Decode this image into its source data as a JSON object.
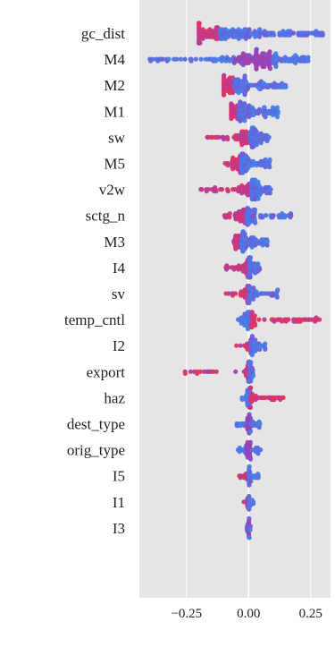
{
  "chart_data": {
    "type": "scatter",
    "subtype": "beeswarm",
    "title": "",
    "xlabel": "",
    "ylabel": "",
    "xlim": [
      -0.44,
      0.33
    ],
    "x_ticks": [
      -0.25,
      0.0,
      0.25
    ],
    "x_tick_labels": [
      "−0.25",
      "0.00",
      "0.25"
    ],
    "grid": true,
    "zero_line": true,
    "legend": "none",
    "colors": {
      "background": "#e5e5e5",
      "grid": "#ffffff",
      "low": "#3d86f0",
      "mid": "#8d45c4",
      "high": "#ee2f56"
    },
    "features": [
      {
        "name": "gc_dist",
        "min": -0.2,
        "max": 0.3,
        "center": -0.12,
        "density": 1.0,
        "spread": 0.28,
        "high_side": "neg",
        "low_side": "pos",
        "count": 240
      },
      {
        "name": "M4",
        "min": -0.4,
        "max": 0.24,
        "center": 0.02,
        "density": 1.0,
        "spread": 0.2,
        "high_side": "center",
        "low_side": "both",
        "count": 220
      },
      {
        "name": "M2",
        "min": -0.1,
        "max": 0.15,
        "center": -0.06,
        "density": 1.0,
        "spread": 0.1,
        "high_side": "neg",
        "low_side": "pos",
        "count": 160
      },
      {
        "name": "M1",
        "min": -0.07,
        "max": 0.12,
        "center": -0.04,
        "density": 1.0,
        "spread": 0.09,
        "high_side": "neg",
        "low_side": "pos",
        "count": 150
      },
      {
        "name": "sw",
        "min": -0.2,
        "max": 0.09,
        "center": 0.0,
        "density": 0.7,
        "spread": 0.07,
        "high_side": "neg",
        "low_side": "pos",
        "count": 130
      },
      {
        "name": "M5",
        "min": -0.1,
        "max": 0.09,
        "center": -0.03,
        "density": 0.8,
        "spread": 0.06,
        "high_side": "neg",
        "low_side": "pos",
        "count": 120
      },
      {
        "name": "v2w",
        "min": -0.2,
        "max": 0.09,
        "center": 0.01,
        "density": 0.7,
        "spread": 0.07,
        "high_side": "neg",
        "low_side": "pos",
        "count": 130
      },
      {
        "name": "sctg_n",
        "min": -0.1,
        "max": 0.18,
        "center": -0.01,
        "density": 0.7,
        "spread": 0.06,
        "high_side": "neg",
        "low_side": "pos",
        "count": 120
      },
      {
        "name": "M3",
        "min": -0.06,
        "max": 0.08,
        "center": -0.03,
        "density": 0.8,
        "spread": 0.05,
        "high_side": "neg",
        "low_side": "pos",
        "count": 110
      },
      {
        "name": "I4",
        "min": -0.1,
        "max": 0.05,
        "center": 0.0,
        "density": 0.6,
        "spread": 0.04,
        "high_side": "neg",
        "low_side": "pos",
        "count": 90
      },
      {
        "name": "sv",
        "min": -0.12,
        "max": 0.12,
        "center": 0.0,
        "density": 0.5,
        "spread": 0.04,
        "high_side": "neg",
        "low_side": "pos",
        "count": 80
      },
      {
        "name": "temp_cntl",
        "min": -0.07,
        "max": 0.29,
        "center": 0.0,
        "density": 0.5,
        "spread": 0.04,
        "high_side": "pos",
        "low_side": "center",
        "count": 100
      },
      {
        "name": "I2",
        "min": -0.05,
        "max": 0.07,
        "center": 0.01,
        "density": 0.5,
        "spread": 0.03,
        "high_side": "neg",
        "low_side": "pos",
        "count": 60
      },
      {
        "name": "export",
        "min": -0.31,
        "max": 0.02,
        "center": 0.0,
        "density": 0.5,
        "spread": 0.02,
        "high_side": "neg",
        "low_side": "center",
        "count": 70
      },
      {
        "name": "haz",
        "min": -0.03,
        "max": 0.15,
        "center": 0.0,
        "density": 0.5,
        "spread": 0.02,
        "high_side": "pos",
        "low_side": "center",
        "count": 70
      },
      {
        "name": "dest_type",
        "min": -0.05,
        "max": 0.05,
        "center": 0.0,
        "density": 0.5,
        "spread": 0.02,
        "high_side": "center",
        "low_side": "both",
        "count": 50
      },
      {
        "name": "orig_type",
        "min": -0.05,
        "max": 0.05,
        "center": 0.0,
        "density": 0.5,
        "spread": 0.02,
        "high_side": "center",
        "low_side": "both",
        "count": 50
      },
      {
        "name": "I5",
        "min": -0.04,
        "max": 0.04,
        "center": 0.0,
        "density": 0.4,
        "spread": 0.015,
        "high_side": "neg",
        "low_side": "pos",
        "count": 40
      },
      {
        "name": "I1",
        "min": -0.02,
        "max": 0.02,
        "center": 0.0,
        "density": 0.3,
        "spread": 0.008,
        "high_side": "neg",
        "low_side": "center",
        "count": 24
      },
      {
        "name": "I3",
        "min": -0.01,
        "max": 0.01,
        "center": 0.0,
        "density": 0.3,
        "spread": 0.005,
        "high_side": "center",
        "low_side": "center",
        "count": 20
      }
    ]
  }
}
